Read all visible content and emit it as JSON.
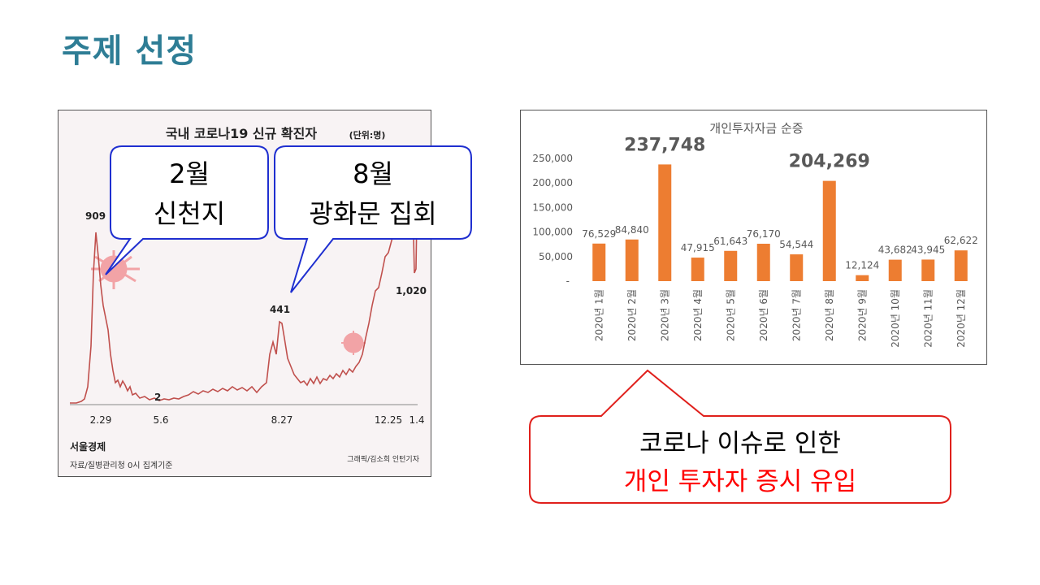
{
  "slide": {
    "title": "주제 선정"
  },
  "left_chart": {
    "title": "국내 코로나19 신규 확진자",
    "unit": "(단위:명)",
    "x_labels": [
      "2.29",
      "5.6",
      "8.27",
      "12.25",
      "1.4"
    ],
    "peak_labels": [
      "909",
      "2",
      "441",
      "1,020"
    ],
    "source_brand": "서울경제",
    "source_note": "자료/질병관리청 0시 집계기준",
    "credit": "그래픽/김소희 인턴기자"
  },
  "callouts": {
    "feb": {
      "line1": "2월",
      "line2": "신천지"
    },
    "aug": {
      "line1": "8월",
      "line2": "광화문 집회"
    },
    "bottom": {
      "line1": "코로나 이슈로 인한",
      "line2": "개인 투자자 증시 유입"
    }
  },
  "chart_data": {
    "type": "bar",
    "title": "개인투자자금 순증",
    "categories": [
      "2020년 1월",
      "2020년 2월",
      "2020년 3월",
      "2020년 4월",
      "2020년 5월",
      "2020년 6월",
      "2020년 7월",
      "2020년 8월",
      "2020년 9월",
      "2020년 10월",
      "2020년 11월",
      "2020년 12월"
    ],
    "values": [
      76529,
      84840,
      237748,
      47915,
      61643,
      76170,
      54544,
      204269,
      12124,
      43682,
      43945,
      62622
    ],
    "value_labels": [
      "76,529",
      "84,840",
      "237,748",
      "47,915",
      "61,643",
      "76,170",
      "54,544",
      "204,269",
      "12,124",
      "43,682",
      "43,945",
      "62,622"
    ],
    "y_ticks": [
      "-",
      "50,000",
      "100,000",
      "150,000",
      "200,000",
      "250,000"
    ],
    "ylim": [
      0,
      250000
    ],
    "bar_color": "#ed7d31",
    "grid": false
  },
  "colors": {
    "title": "#2e7d95",
    "callout_border": "#1f2fd0",
    "bottom_border": "#e0201c",
    "bottom_highlight": "#ff0000",
    "line": "#c0504d"
  }
}
